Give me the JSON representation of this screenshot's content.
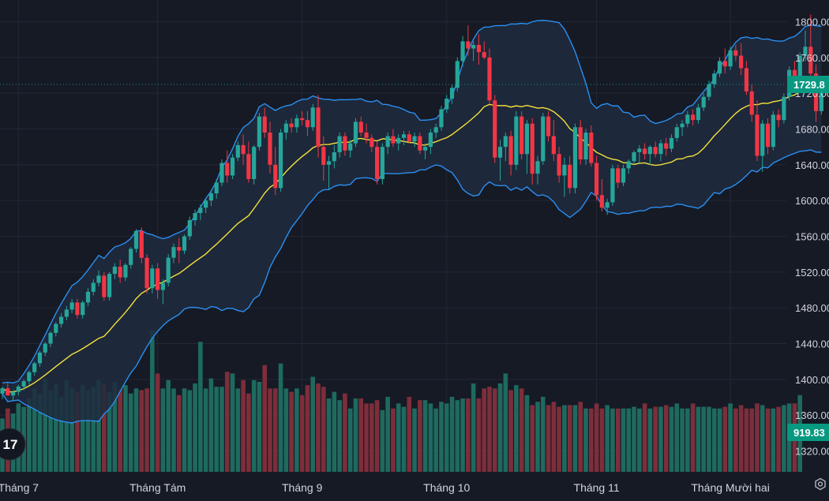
{
  "chart_data": {
    "type": "candlestick",
    "colors": {
      "up": "#26a69a",
      "down": "#f23645",
      "ma": "#f5e13c",
      "bands": "#2a8ff0",
      "band_fill": "#1f2b3e",
      "grid": "#232834",
      "last_price_tag": "#089981",
      "volume_up": "#1e6a5f",
      "volume_down": "#7d2e3a"
    },
    "price_axis": {
      "min": 1300,
      "max": 1820,
      "ticks": [
        "1800.00",
        "1760.00",
        "1720.00",
        "1680.00",
        "1640.00",
        "1600.00",
        "1560.00",
        "1520.00",
        "1480.00",
        "1440.00",
        "1400.00",
        "1360.00",
        "1320.00"
      ],
      "tick_values": [
        1800,
        1760,
        1720,
        1680,
        1640,
        1600,
        1560,
        1520,
        1480,
        1440,
        1400,
        1360,
        1320
      ]
    },
    "time_axis": {
      "labels": [
        "Tháng 7",
        "Tháng Tám",
        "Tháng 9",
        "Tháng 10",
        "Tháng 11",
        "Tháng Mười hai"
      ],
      "label_bar_index": [
        3,
        29,
        56,
        83,
        111,
        136
      ]
    },
    "last_price": "1729.8",
    "last_volume": "919.83",
    "logo_text": "17",
    "candles": [
      [
        1384,
        1392,
        1378,
        1390
      ],
      [
        1390,
        1396,
        1384,
        1382
      ],
      [
        1382,
        1388,
        1376,
        1386
      ],
      [
        1386,
        1394,
        1382,
        1392
      ],
      [
        1392,
        1400,
        1388,
        1398
      ],
      [
        1398,
        1410,
        1394,
        1408
      ],
      [
        1408,
        1420,
        1404,
        1418
      ],
      [
        1418,
        1432,
        1414,
        1430
      ],
      [
        1430,
        1442,
        1426,
        1440
      ],
      [
        1440,
        1454,
        1436,
        1452
      ],
      [
        1452,
        1464,
        1448,
        1462
      ],
      [
        1462,
        1474,
        1458,
        1470
      ],
      [
        1470,
        1482,
        1466,
        1478
      ],
      [
        1478,
        1490,
        1474,
        1486
      ],
      [
        1486,
        1490,
        1468,
        1472
      ],
      [
        1472,
        1488,
        1468,
        1486
      ],
      [
        1486,
        1502,
        1482,
        1498
      ],
      [
        1498,
        1512,
        1494,
        1508
      ],
      [
        1508,
        1522,
        1504,
        1516
      ],
      [
        1516,
        1520,
        1488,
        1492
      ],
      [
        1492,
        1520,
        1488,
        1518
      ],
      [
        1518,
        1530,
        1512,
        1526
      ],
      [
        1526,
        1534,
        1508,
        1514
      ],
      [
        1514,
        1530,
        1510,
        1528
      ],
      [
        1528,
        1548,
        1524,
        1546
      ],
      [
        1546,
        1568,
        1542,
        1566
      ],
      [
        1566,
        1570,
        1530,
        1536
      ],
      [
        1536,
        1540,
        1496,
        1502
      ],
      [
        1502,
        1528,
        1496,
        1524
      ],
      [
        1524,
        1530,
        1490,
        1500
      ],
      [
        1500,
        1512,
        1484,
        1508
      ],
      [
        1508,
        1540,
        1504,
        1536
      ],
      [
        1536,
        1552,
        1530,
        1548
      ],
      [
        1548,
        1558,
        1530,
        1544
      ],
      [
        1544,
        1562,
        1540,
        1560
      ],
      [
        1560,
        1582,
        1556,
        1578
      ],
      [
        1578,
        1590,
        1572,
        1586
      ],
      [
        1586,
        1596,
        1578,
        1592
      ],
      [
        1592,
        1602,
        1586,
        1600
      ],
      [
        1600,
        1612,
        1594,
        1608
      ],
      [
        1608,
        1624,
        1602,
        1620
      ],
      [
        1620,
        1646,
        1616,
        1642
      ],
      [
        1642,
        1656,
        1620,
        1628
      ],
      [
        1628,
        1652,
        1624,
        1648
      ],
      [
        1648,
        1666,
        1644,
        1662
      ],
      [
        1662,
        1674,
        1640,
        1652
      ],
      [
        1652,
        1666,
        1620,
        1624
      ],
      [
        1624,
        1662,
        1618,
        1660
      ],
      [
        1660,
        1698,
        1656,
        1694
      ],
      [
        1694,
        1704,
        1670,
        1676
      ],
      [
        1676,
        1688,
        1630,
        1640
      ],
      [
        1640,
        1660,
        1606,
        1614
      ],
      [
        1614,
        1680,
        1610,
        1676
      ],
      [
        1676,
        1690,
        1668,
        1686
      ],
      [
        1686,
        1692,
        1676,
        1682
      ],
      [
        1682,
        1696,
        1676,
        1692
      ],
      [
        1692,
        1700,
        1684,
        1690
      ],
      [
        1690,
        1700,
        1672,
        1682
      ],
      [
        1682,
        1708,
        1678,
        1704
      ],
      [
        1704,
        1718,
        1648,
        1660
      ],
      [
        1660,
        1672,
        1622,
        1640
      ],
      [
        1640,
        1650,
        1612,
        1644
      ],
      [
        1644,
        1662,
        1636,
        1654
      ],
      [
        1654,
        1676,
        1648,
        1672
      ],
      [
        1672,
        1676,
        1650,
        1656
      ],
      [
        1656,
        1668,
        1648,
        1664
      ],
      [
        1664,
        1692,
        1660,
        1688
      ],
      [
        1688,
        1694,
        1672,
        1676
      ],
      [
        1676,
        1686,
        1664,
        1670
      ],
      [
        1670,
        1674,
        1654,
        1660
      ],
      [
        1660,
        1666,
        1618,
        1624
      ],
      [
        1624,
        1664,
        1618,
        1660
      ],
      [
        1660,
        1676,
        1652,
        1672
      ],
      [
        1672,
        1680,
        1660,
        1664
      ],
      [
        1664,
        1674,
        1656,
        1670
      ],
      [
        1670,
        1678,
        1662,
        1674
      ],
      [
        1674,
        1678,
        1664,
        1666
      ],
      [
        1666,
        1676,
        1660,
        1672
      ],
      [
        1672,
        1676,
        1652,
        1656
      ],
      [
        1656,
        1664,
        1646,
        1660
      ],
      [
        1660,
        1680,
        1652,
        1676
      ],
      [
        1676,
        1686,
        1670,
        1682
      ],
      [
        1682,
        1706,
        1678,
        1702
      ],
      [
        1702,
        1718,
        1698,
        1714
      ],
      [
        1714,
        1730,
        1708,
        1726
      ],
      [
        1726,
        1760,
        1722,
        1756
      ],
      [
        1756,
        1784,
        1750,
        1778
      ],
      [
        1778,
        1796,
        1762,
        1770
      ],
      [
        1770,
        1778,
        1756,
        1774
      ],
      [
        1774,
        1786,
        1752,
        1766
      ],
      [
        1766,
        1778,
        1758,
        1760
      ],
      [
        1760,
        1770,
        1708,
        1712
      ],
      [
        1712,
        1718,
        1642,
        1648
      ],
      [
        1648,
        1668,
        1622,
        1660
      ],
      [
        1660,
        1676,
        1644,
        1672
      ],
      [
        1672,
        1678,
        1628,
        1640
      ],
      [
        1640,
        1700,
        1634,
        1694
      ],
      [
        1694,
        1700,
        1646,
        1652
      ],
      [
        1652,
        1690,
        1630,
        1686
      ],
      [
        1686,
        1692,
        1618,
        1630
      ],
      [
        1630,
        1650,
        1618,
        1644
      ],
      [
        1644,
        1698,
        1640,
        1694
      ],
      [
        1694,
        1700,
        1666,
        1672
      ],
      [
        1672,
        1690,
        1644,
        1652
      ],
      [
        1652,
        1660,
        1620,
        1628
      ],
      [
        1628,
        1648,
        1604,
        1640
      ],
      [
        1640,
        1650,
        1608,
        1614
      ],
      [
        1614,
        1686,
        1608,
        1682
      ],
      [
        1682,
        1690,
        1640,
        1646
      ],
      [
        1646,
        1680,
        1640,
        1676
      ],
      [
        1676,
        1684,
        1638,
        1642
      ],
      [
        1642,
        1650,
        1600,
        1606
      ],
      [
        1606,
        1624,
        1588,
        1592
      ],
      [
        1592,
        1602,
        1584,
        1598
      ],
      [
        1598,
        1640,
        1594,
        1636
      ],
      [
        1636,
        1640,
        1614,
        1620
      ],
      [
        1620,
        1640,
        1616,
        1636
      ],
      [
        1636,
        1646,
        1630,
        1644
      ],
      [
        1644,
        1656,
        1640,
        1654
      ],
      [
        1654,
        1662,
        1642,
        1658
      ],
      [
        1658,
        1664,
        1646,
        1652
      ],
      [
        1652,
        1662,
        1640,
        1660
      ],
      [
        1660,
        1666,
        1648,
        1652
      ],
      [
        1652,
        1668,
        1644,
        1664
      ],
      [
        1664,
        1670,
        1650,
        1658
      ],
      [
        1658,
        1674,
        1654,
        1670
      ],
      [
        1670,
        1686,
        1666,
        1682
      ],
      [
        1682,
        1690,
        1672,
        1686
      ],
      [
        1686,
        1700,
        1682,
        1696
      ],
      [
        1696,
        1702,
        1684,
        1690
      ],
      [
        1690,
        1708,
        1686,
        1704
      ],
      [
        1704,
        1720,
        1700,
        1716
      ],
      [
        1716,
        1734,
        1712,
        1730
      ],
      [
        1730,
        1746,
        1726,
        1742
      ],
      [
        1742,
        1760,
        1738,
        1756
      ],
      [
        1756,
        1770,
        1742,
        1750
      ],
      [
        1750,
        1772,
        1746,
        1768
      ],
      [
        1768,
        1774,
        1756,
        1762
      ],
      [
        1762,
        1776,
        1740,
        1748
      ],
      [
        1748,
        1756,
        1718,
        1722
      ],
      [
        1722,
        1730,
        1688,
        1696
      ],
      [
        1696,
        1712,
        1644,
        1650
      ],
      [
        1650,
        1690,
        1632,
        1686
      ],
      [
        1686,
        1692,
        1652,
        1660
      ],
      [
        1660,
        1700,
        1656,
        1696
      ],
      [
        1696,
        1702,
        1682,
        1690
      ],
      [
        1690,
        1720,
        1686,
        1716
      ],
      [
        1716,
        1750,
        1712,
        1746
      ],
      [
        1746,
        1756,
        1726,
        1734
      ],
      [
        1734,
        1766,
        1730,
        1762
      ],
      [
        1762,
        1790,
        1756,
        1772
      ],
      [
        1772,
        1808,
        1736,
        1742
      ],
      [
        1742,
        1752,
        1688,
        1700
      ],
      [
        1700,
        1732,
        1696,
        1729.8
      ]
    ],
    "volume_max": 1420,
    "volumes": [
      640,
      760,
      700,
      820,
      780,
      880,
      1000,
      940,
      1120,
      980,
      1060,
      900,
      1100,
      1000,
      960,
      1040,
      980,
      1020,
      1100,
      1060,
      960,
      1080,
      1000,
      1040,
      940,
      1000,
      980,
      1000,
      1700,
      1180,
      1000,
      1100,
      1000,
      920,
      1000,
      980,
      1060,
      1560,
      1000,
      1120,
      1020,
      1020,
      1200,
      1180,
      1000,
      1100,
      940,
      1100,
      1080,
      1280,
      1000,
      1000,
      1300,
      1000,
      960,
      1000,
      920,
      1040,
      1140,
      1060,
      1020,
      880,
      960,
      860,
      940,
      760,
      880,
      880,
      820,
      820,
      860,
      740,
      900,
      760,
      820,
      780,
      900,
      760,
      860,
      860,
      820,
      760,
      840,
      820,
      900,
      860,
      880,
      880,
      1060,
      880,
      1000,
      1020,
      1000,
      1060,
      1180,
      980,
      1040,
      1000,
      920,
      800,
      840,
      900,
      800,
      840,
      780,
      800,
      800,
      800,
      840,
      760,
      760,
      820,
      760,
      800,
      760,
      760,
      760,
      760,
      780,
      760,
      820,
      760,
      780,
      780,
      800,
      780,
      820,
      760,
      760,
      820,
      780,
      780,
      780,
      760,
      760,
      780,
      820,
      760,
      800,
      760,
      760,
      820,
      800,
      760,
      760,
      780,
      800,
      820,
      820,
      919.83
    ]
  }
}
